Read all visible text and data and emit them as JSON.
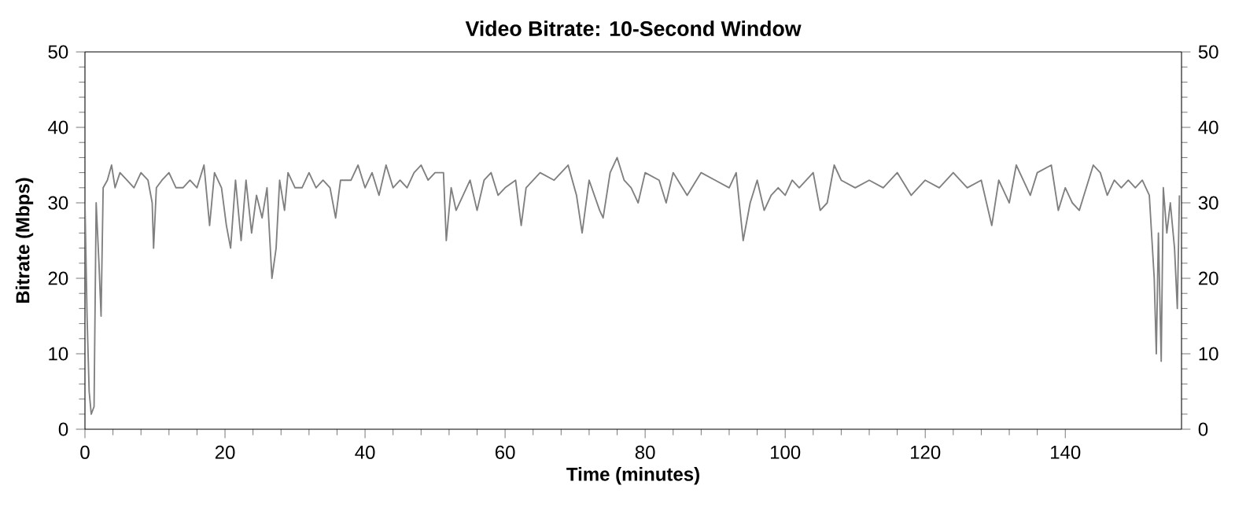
{
  "chart_data": {
    "type": "line",
    "title": "Video Bitrate: 10-Second Window",
    "xlabel": "Time (minutes)",
    "ylabel": "Bitrate (Mbps)",
    "xlim": [
      0,
      156.6
    ],
    "xticks": [
      0,
      20,
      40,
      60,
      80,
      100,
      120,
      140
    ],
    "ylim": [
      0,
      50
    ],
    "yticks": [
      0,
      10,
      20,
      30,
      40,
      50
    ],
    "y2lim": [
      0,
      50
    ],
    "y2ticks": [
      0,
      10,
      20,
      30,
      40,
      50
    ],
    "grid": false,
    "marker": "none",
    "line_style": "solid",
    "x": [
      0,
      0.3,
      0.6,
      0.9,
      1.3,
      1.6,
      2.0,
      2.3,
      2.6,
      3.2,
      3.8,
      4.3,
      5,
      6,
      7,
      8,
      9,
      9.6,
      9.8,
      10.2,
      11,
      12,
      13,
      14,
      15,
      16,
      17,
      17.5,
      17.8,
      18.5,
      19.5,
      20.2,
      20.8,
      21.5,
      22.3,
      23,
      23.8,
      24.5,
      25.3,
      26,
      26.7,
      27.3,
      27.8,
      28.5,
      29,
      30,
      31,
      32,
      33,
      34,
      35,
      35.8,
      36.5,
      38,
      39,
      40,
      41,
      42,
      43,
      44,
      45,
      46,
      47,
      48,
      49,
      50,
      51.2,
      51.6,
      52.3,
      53,
      54,
      55,
      56,
      57,
      58,
      59,
      60,
      61.5,
      62.3,
      63,
      65,
      67,
      69,
      70.2,
      71,
      72,
      73.5,
      74,
      75,
      76,
      77,
      78,
      79,
      80,
      82,
      83,
      84,
      86,
      88,
      90,
      92,
      93,
      94,
      95,
      96,
      97,
      98,
      99,
      100,
      101,
      102,
      104,
      105,
      106,
      107,
      108,
      110,
      112,
      114,
      116,
      118,
      120,
      122,
      124,
      126,
      128,
      129.5,
      130.5,
      132,
      133,
      134,
      135,
      136,
      138,
      139,
      140,
      141,
      142,
      143,
      144,
      145,
      146,
      147,
      148,
      149,
      150,
      151,
      152,
      152.7,
      153,
      153.3,
      153.7,
      154,
      154.5,
      155,
      155.6,
      156,
      156.3
    ],
    "series": [
      {
        "color": "#808080",
        "values": [
          30,
          15,
          5,
          2,
          3,
          30,
          22,
          15,
          32,
          33,
          35,
          32,
          34,
          33,
          32,
          34,
          33,
          30,
          24,
          32,
          33,
          34,
          32,
          32,
          33,
          32,
          35,
          30,
          27,
          34,
          32,
          27,
          24,
          33,
          25,
          33,
          26,
          31,
          28,
          32,
          20,
          24,
          33,
          29,
          34,
          32,
          32,
          34,
          32,
          33,
          32,
          28,
          33,
          33,
          35,
          32,
          34,
          31,
          35,
          32,
          33,
          32,
          34,
          35,
          33,
          34,
          34,
          25,
          32,
          29,
          31,
          33,
          29,
          33,
          34,
          31,
          32,
          33,
          27,
          32,
          34,
          33,
          35,
          31,
          26,
          33,
          29,
          28,
          34,
          36,
          33,
          32,
          30,
          34,
          33,
          30,
          34,
          31,
          34,
          33,
          32,
          34,
          25,
          30,
          33,
          29,
          31,
          32,
          31,
          33,
          32,
          34,
          29,
          30,
          35,
          33,
          32,
          33,
          32,
          34,
          31,
          33,
          32,
          34,
          32,
          33,
          27,
          33,
          30,
          35,
          33,
          31,
          34,
          35,
          29,
          32,
          30,
          29,
          32,
          35,
          34,
          31,
          33,
          32,
          33,
          32,
          33,
          31,
          20,
          10,
          26,
          9,
          32,
          26,
          30,
          24,
          16,
          31
        ]
      }
    ]
  }
}
